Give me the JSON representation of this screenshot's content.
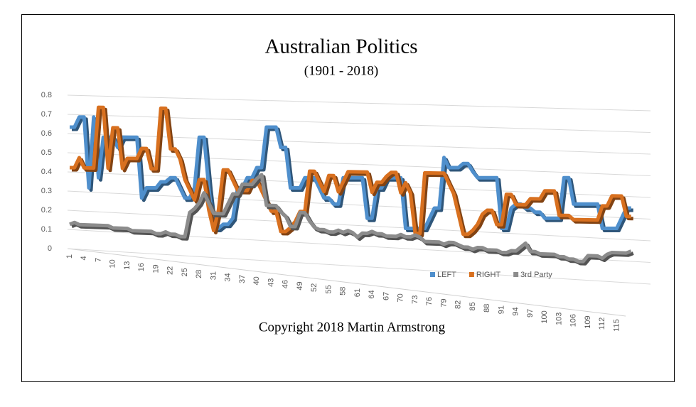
{
  "chart_data": {
    "type": "line3d",
    "title": "Australian Politics",
    "subtitle": "(1901 - 2018)",
    "caption": "Copyright 2018 Martin Armstrong",
    "categories": [
      "1",
      null,
      null,
      "4",
      null,
      null,
      "7",
      null,
      null,
      "10",
      null,
      null,
      "13",
      null,
      null,
      "16",
      null,
      null,
      "19",
      null,
      null,
      "22",
      null,
      null,
      "25",
      null,
      null,
      "28",
      null,
      null,
      "31",
      null,
      null,
      "34",
      null,
      null,
      "37",
      null,
      null,
      "40",
      null,
      null,
      "43",
      null,
      null,
      "46",
      null,
      null,
      "49",
      null,
      null,
      "52",
      null,
      null,
      "55",
      null,
      null,
      "58",
      null,
      null,
      "61",
      null,
      null,
      "64",
      null,
      null,
      "67",
      null,
      null,
      "70",
      null,
      null,
      "73",
      null,
      null,
      "76",
      null,
      null,
      "79",
      null,
      null,
      "82",
      null,
      null,
      "85",
      null,
      null,
      "88",
      null,
      null,
      "91",
      null,
      null,
      "94",
      null,
      null,
      "97",
      null,
      null,
      "100",
      null,
      null,
      "103",
      null,
      null,
      "106",
      null,
      null,
      "109",
      null,
      null,
      "112",
      null,
      null,
      "115",
      null,
      null,
      null
    ],
    "series": [
      {
        "name": "LEFT",
        "color": "#4f8fcc",
        "values": [
          0.6,
          0.6,
          0.65,
          0.65,
          0.3,
          0.65,
          0.35,
          0.55,
          0.55,
          0.55,
          0.5,
          0.55,
          0.55,
          0.55,
          0.55,
          0.25,
          0.3,
          0.3,
          0.3,
          0.33,
          0.33,
          0.35,
          0.35,
          0.3,
          0.25,
          0.25,
          0.3,
          0.55,
          0.55,
          0.3,
          0.1,
          0.1,
          0.12,
          0.12,
          0.15,
          0.3,
          0.3,
          0.35,
          0.35,
          0.4,
          0.4,
          0.6,
          0.6,
          0.6,
          0.5,
          0.5,
          0.3,
          0.3,
          0.3,
          0.35,
          0.35,
          0.35,
          0.3,
          0.25,
          0.25,
          0.22,
          0.22,
          0.35,
          0.35,
          0.35,
          0.35,
          0.35,
          0.15,
          0.15,
          0.3,
          0.3,
          0.35,
          0.35,
          0.35,
          0.35,
          0.1,
          0.1,
          0.1,
          0.1,
          0.1,
          0.15,
          0.2,
          0.2,
          0.45,
          0.4,
          0.4,
          0.4,
          0.42,
          0.42,
          0.38,
          0.35,
          0.35,
          0.35,
          0.35,
          0.35,
          0.1,
          0.1,
          0.2,
          0.22,
          0.22,
          0.2,
          0.2,
          0.18,
          0.18,
          0.15,
          0.15,
          0.15,
          0.15,
          0.35,
          0.35,
          0.22,
          0.22,
          0.22,
          0.22,
          0.22,
          0.22,
          0.1,
          0.1,
          0.1,
          0.1,
          0.15,
          0.2,
          0.2
        ]
      },
      {
        "name": "RIGHT",
        "color": "#d8701f",
        "values": [
          0.4,
          0.4,
          0.45,
          0.4,
          0.4,
          0.4,
          0.7,
          0.7,
          0.4,
          0.6,
          0.6,
          0.4,
          0.45,
          0.45,
          0.45,
          0.5,
          0.5,
          0.4,
          0.4,
          0.7,
          0.7,
          0.5,
          0.5,
          0.45,
          0.35,
          0.3,
          0.25,
          0.35,
          0.35,
          0.2,
          0.1,
          0.2,
          0.4,
          0.4,
          0.35,
          0.3,
          0.3,
          0.3,
          0.35,
          0.35,
          0.3,
          0.25,
          0.2,
          0.2,
          0.1,
          0.1,
          0.12,
          0.15,
          0.2,
          0.2,
          0.4,
          0.4,
          0.35,
          0.3,
          0.38,
          0.38,
          0.3,
          0.35,
          0.4,
          0.4,
          0.4,
          0.4,
          0.4,
          0.3,
          0.35,
          0.35,
          0.38,
          0.4,
          0.4,
          0.3,
          0.35,
          0.3,
          0.1,
          0.1,
          0.4,
          0.4,
          0.4,
          0.4,
          0.4,
          0.35,
          0.3,
          0.2,
          0.1,
          0.1,
          0.12,
          0.15,
          0.2,
          0.22,
          0.22,
          0.15,
          0.15,
          0.3,
          0.3,
          0.25,
          0.25,
          0.25,
          0.28,
          0.28,
          0.28,
          0.32,
          0.32,
          0.32,
          0.2,
          0.2,
          0.2,
          0.18,
          0.18,
          0.18,
          0.18,
          0.18,
          0.18,
          0.25,
          0.25,
          0.3,
          0.3,
          0.3,
          0.2,
          0.2
        ]
      },
      {
        "name": "3rd Party",
        "color": "#8c8c8c",
        "values": [
          0.12,
          0.13,
          0.12,
          0.12,
          0.12,
          0.12,
          0.12,
          0.12,
          0.12,
          0.11,
          0.11,
          0.11,
          0.11,
          0.1,
          0.1,
          0.1,
          0.1,
          0.1,
          0.09,
          0.09,
          0.1,
          0.09,
          0.09,
          0.08,
          0.08,
          0.2,
          0.22,
          0.25,
          0.3,
          0.25,
          0.2,
          0.2,
          0.2,
          0.25,
          0.3,
          0.3,
          0.35,
          0.35,
          0.35,
          0.38,
          0.4,
          0.25,
          0.25,
          0.25,
          0.22,
          0.2,
          0.15,
          0.15,
          0.22,
          0.22,
          0.18,
          0.15,
          0.14,
          0.14,
          0.13,
          0.13,
          0.14,
          0.13,
          0.14,
          0.13,
          0.11,
          0.13,
          0.13,
          0.14,
          0.13,
          0.13,
          0.12,
          0.12,
          0.12,
          0.13,
          0.12,
          0.12,
          0.13,
          0.12,
          0.1,
          0.1,
          0.1,
          0.1,
          0.09,
          0.1,
          0.1,
          0.09,
          0.08,
          0.08,
          0.07,
          0.08,
          0.08,
          0.07,
          0.07,
          0.07,
          0.06,
          0.06,
          0.07,
          0.07,
          0.09,
          0.11,
          0.07,
          0.07,
          0.06,
          0.06,
          0.06,
          0.06,
          0.05,
          0.05,
          0.04,
          0.04,
          0.03,
          0.03,
          0.06,
          0.06,
          0.06,
          0.05,
          0.07,
          0.08,
          0.08,
          0.08,
          0.08,
          0.09
        ]
      }
    ],
    "ylim": [
      0,
      0.8
    ],
    "yticks": [
      0,
      0.1,
      0.2,
      0.3,
      0.4,
      0.5,
      0.6,
      0.7,
      0.8
    ],
    "grid": true
  }
}
